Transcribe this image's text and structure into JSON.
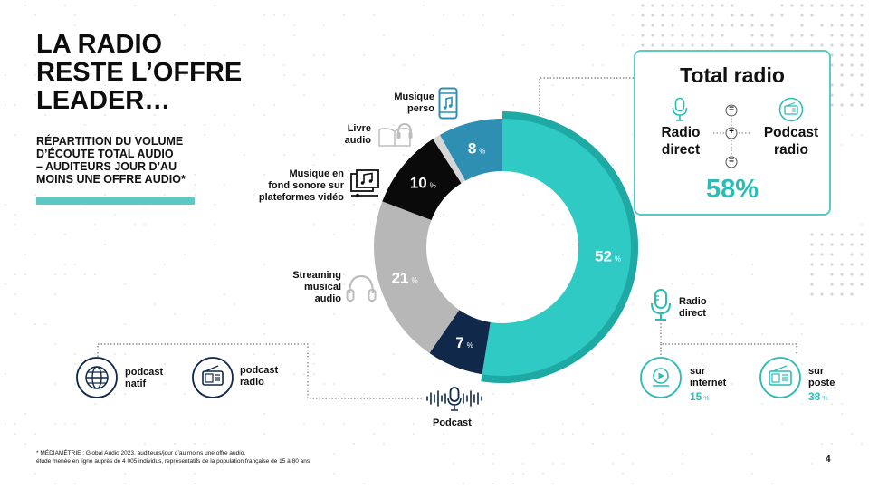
{
  "title": "LA RADIO\nRESTE L’OFFRE\nLEADER…",
  "subtitle": "RÉPARTITION DU VOLUME\nD’ÉCOUTE TOTAL AUDIO\n– AUDITEURS JOUR D’AU\nMOINS UNE OFFRE AUDIO*",
  "chart_data": {
    "type": "pie",
    "unit": "%",
    "categories": [
      "Radio direct",
      "Podcast",
      "Streaming musical audio",
      "Musique en fond sonore sur plateformes vidéo",
      "Livre audio",
      "Musique perso"
    ],
    "values": [
      52,
      7,
      21,
      10,
      1,
      8
    ],
    "value_labels": [
      "52",
      "7",
      "21",
      "10",
      "",
      "8"
    ],
    "colors": [
      "#2fcac4",
      "#10284a",
      "#b7b7b7",
      "#0a0a0a",
      "#d6d6d6",
      "#2f8fb3"
    ]
  },
  "segment_labels": {
    "musique_perso": "Musique\nperso",
    "livre_audio": "Livre\naudio",
    "musique_fond": "Musique en\nfond sonore sur\nplateformes vidéo",
    "streaming": "Streaming\nmusical\naudio",
    "podcast": "Podcast",
    "radio_direct": "Radio\ndirect"
  },
  "podcast_types": {
    "natif": "podcast\nnatif",
    "radio": "podcast\nradio"
  },
  "radio_modes": {
    "internet_label": "sur\ninternet",
    "internet_value": "15",
    "poste_label": "sur\nposte",
    "poste_value": "38",
    "unit": "%"
  },
  "total_card": {
    "title": "Total radio",
    "left": "Radio\ndirect",
    "right": "Podcast\nradio",
    "equals": "=",
    "plus": "+",
    "value": "58%"
  },
  "footnote": "* MÉDIAMÉTRIE : Global Audio 2023, auditeurs/jour d’au moins une offre audio,\nétude menée en ligne auprès de 4 005 individus, représentatifs de la population française de 15 à 80 ans",
  "page_number": "4",
  "colors": {
    "accent": "#2bbcb6",
    "teal_light": "#5ec8c6",
    "navy": "#10284a",
    "blue": "#2f8fb3"
  },
  "icons": [
    "smartphone-music-icon",
    "book-headphones-icon",
    "video-music-icon",
    "headphones-icon",
    "podcast-microphone-icon",
    "globe-icon",
    "radio-icon",
    "microphone-icon",
    "play-circle-icon"
  ]
}
